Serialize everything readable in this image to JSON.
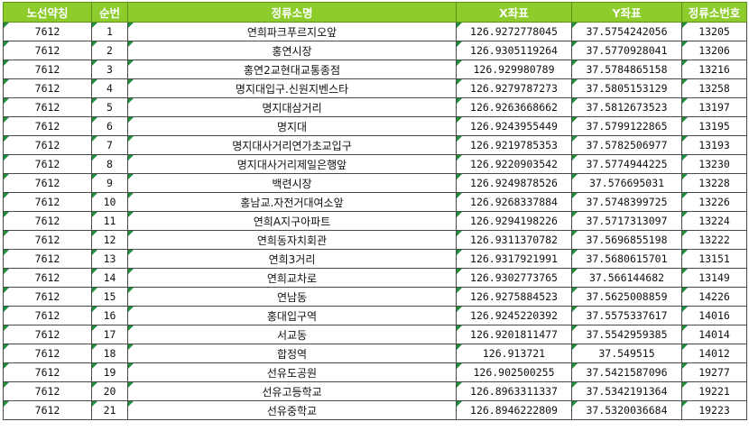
{
  "headers": [
    "노선약칭",
    "순번",
    "정류소명",
    "X좌표",
    "Y좌표",
    "정류소번호"
  ],
  "colors": {
    "header_bg": "#8dcc2a",
    "header_text": "#ffffff",
    "cell_marker": "#1f8f3a"
  },
  "rows": [
    [
      "7612",
      "1",
      "연희파크푸르지오앞",
      "126.9272778045",
      "37.5754242056",
      "13205"
    ],
    [
      "7612",
      "2",
      "홍연시장",
      "126.9305119264",
      "37.5770928041",
      "13206"
    ],
    [
      "7612",
      "3",
      "홍연2교현대교통종점",
      "126.929980789",
      "37.5784865158",
      "13216"
    ],
    [
      "7612",
      "4",
      "명지대입구.신원지벤스타",
      "126.9279787273",
      "37.5805153129",
      "13258"
    ],
    [
      "7612",
      "5",
      "명지대삼거리",
      "126.9263668662",
      "37.5812673523",
      "13197"
    ],
    [
      "7612",
      "6",
      "명지대",
      "126.9243955449",
      "37.5799122865",
      "13195"
    ],
    [
      "7612",
      "7",
      "명지대사거리연가초교입구",
      "126.9219785353",
      "37.5782506977",
      "13193"
    ],
    [
      "7612",
      "8",
      "명지대사거리제일은행앞",
      "126.9220903542",
      "37.5774944225",
      "13230"
    ],
    [
      "7612",
      "9",
      "백련시장",
      "126.9249878526",
      "37.576695031",
      "13228"
    ],
    [
      "7612",
      "10",
      "홍남교.자전거대여소앞",
      "126.9268337884",
      "37.5748399725",
      "13226"
    ],
    [
      "7612",
      "11",
      "연희A지구아파트",
      "126.9294198226",
      "37.5717313097",
      "13224"
    ],
    [
      "7612",
      "12",
      "연희동자치회관",
      "126.9311370782",
      "37.5696855198",
      "13222"
    ],
    [
      "7612",
      "13",
      "연희3거리",
      "126.9317921991",
      "37.5680615701",
      "13151"
    ],
    [
      "7612",
      "14",
      "연희교차로",
      "126.9302773765",
      "37.566144682",
      "13149"
    ],
    [
      "7612",
      "15",
      "연남동",
      "126.9275884523",
      "37.5625008859",
      "14226"
    ],
    [
      "7612",
      "16",
      "홍대입구역",
      "126.9245220392",
      "37.5575337617",
      "14016"
    ],
    [
      "7612",
      "17",
      "서교동",
      "126.9201811477",
      "37.5542959385",
      "14014"
    ],
    [
      "7612",
      "18",
      "합정역",
      "126.913721",
      "37.549515",
      "14012"
    ],
    [
      "7612",
      "19",
      "선유도공원",
      "126.902500255",
      "37.5421587096",
      "19277"
    ],
    [
      "7612",
      "20",
      "선유고등학교",
      "126.8963311337",
      "37.5342191364",
      "19221"
    ],
    [
      "7612",
      "21",
      "선유중학교",
      "126.8946222809",
      "37.5320036684",
      "19223"
    ]
  ]
}
